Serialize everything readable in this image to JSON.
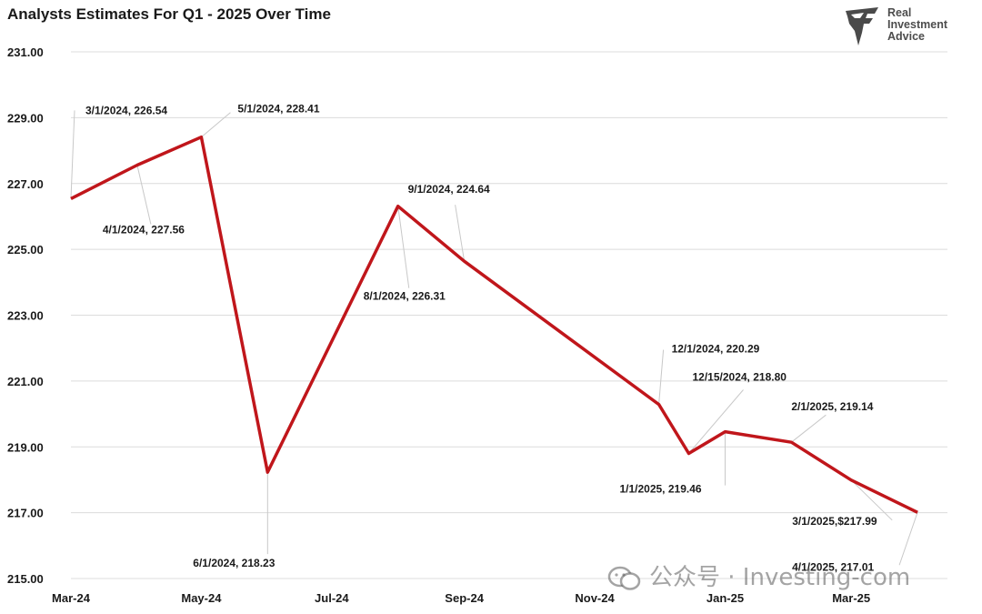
{
  "chart_data": {
    "type": "line",
    "title": "Analysts Estimates For Q1 - 2025 Over Time",
    "ylim": [
      215,
      231
    ],
    "xlim": [
      "2024-03-01",
      "2025-04-15"
    ],
    "y_ticks": [
      "231.00",
      "229.00",
      "227.00",
      "225.00",
      "223.00",
      "221.00",
      "219.00",
      "217.00",
      "215.00"
    ],
    "x_ticks": [
      {
        "label": "Mar-24",
        "date": "2024-03-01"
      },
      {
        "label": "May-24",
        "date": "2024-05-01"
      },
      {
        "label": "Jul-24",
        "date": "2024-07-01"
      },
      {
        "label": "Sep-24",
        "date": "2024-09-01"
      },
      {
        "label": "Nov-24",
        "date": "2024-11-01"
      },
      {
        "label": "Jan-25",
        "date": "2025-01-01"
      },
      {
        "label": "Mar-25",
        "date": "2025-03-01"
      }
    ],
    "grid": "horizontal",
    "line_color": "#c0161b",
    "points": [
      {
        "x": "2024-03-01",
        "y": 226.54,
        "label": "3/1/2024, 226.54"
      },
      {
        "x": "2024-04-01",
        "y": 227.56,
        "label": "4/1/2024, 227.56"
      },
      {
        "x": "2024-05-01",
        "y": 228.41,
        "label": "5/1/2024, 228.41"
      },
      {
        "x": "2024-06-01",
        "y": 218.23,
        "label": "6/1/2024, 218.23"
      },
      {
        "x": "2024-08-01",
        "y": 226.31,
        "label": "8/1/2024, 226.31"
      },
      {
        "x": "2024-09-01",
        "y": 224.64,
        "label": "9/1/2024, 224.64"
      },
      {
        "x": "2024-12-01",
        "y": 220.29,
        "label": "12/1/2024, 220.29"
      },
      {
        "x": "2024-12-15",
        "y": 218.8,
        "label": "12/15/2024, 218.80"
      },
      {
        "x": "2025-01-01",
        "y": 219.46,
        "label": "1/1/2025, 219.46"
      },
      {
        "x": "2025-02-01",
        "y": 219.14,
        "label": "2/1/2025, 219.14"
      },
      {
        "x": "2025-03-01",
        "y": 217.99,
        "label": "3/1/2025,$217.99"
      },
      {
        "x": "2025-04-01",
        "y": 217.01,
        "label": "4/1/2025, 217.01"
      }
    ]
  },
  "logo": {
    "line1": "Real",
    "line2": "Investment",
    "line3": "Advice"
  },
  "watermark": {
    "text": "公众号 · Investing-com",
    "icon": "wechat-icon"
  }
}
